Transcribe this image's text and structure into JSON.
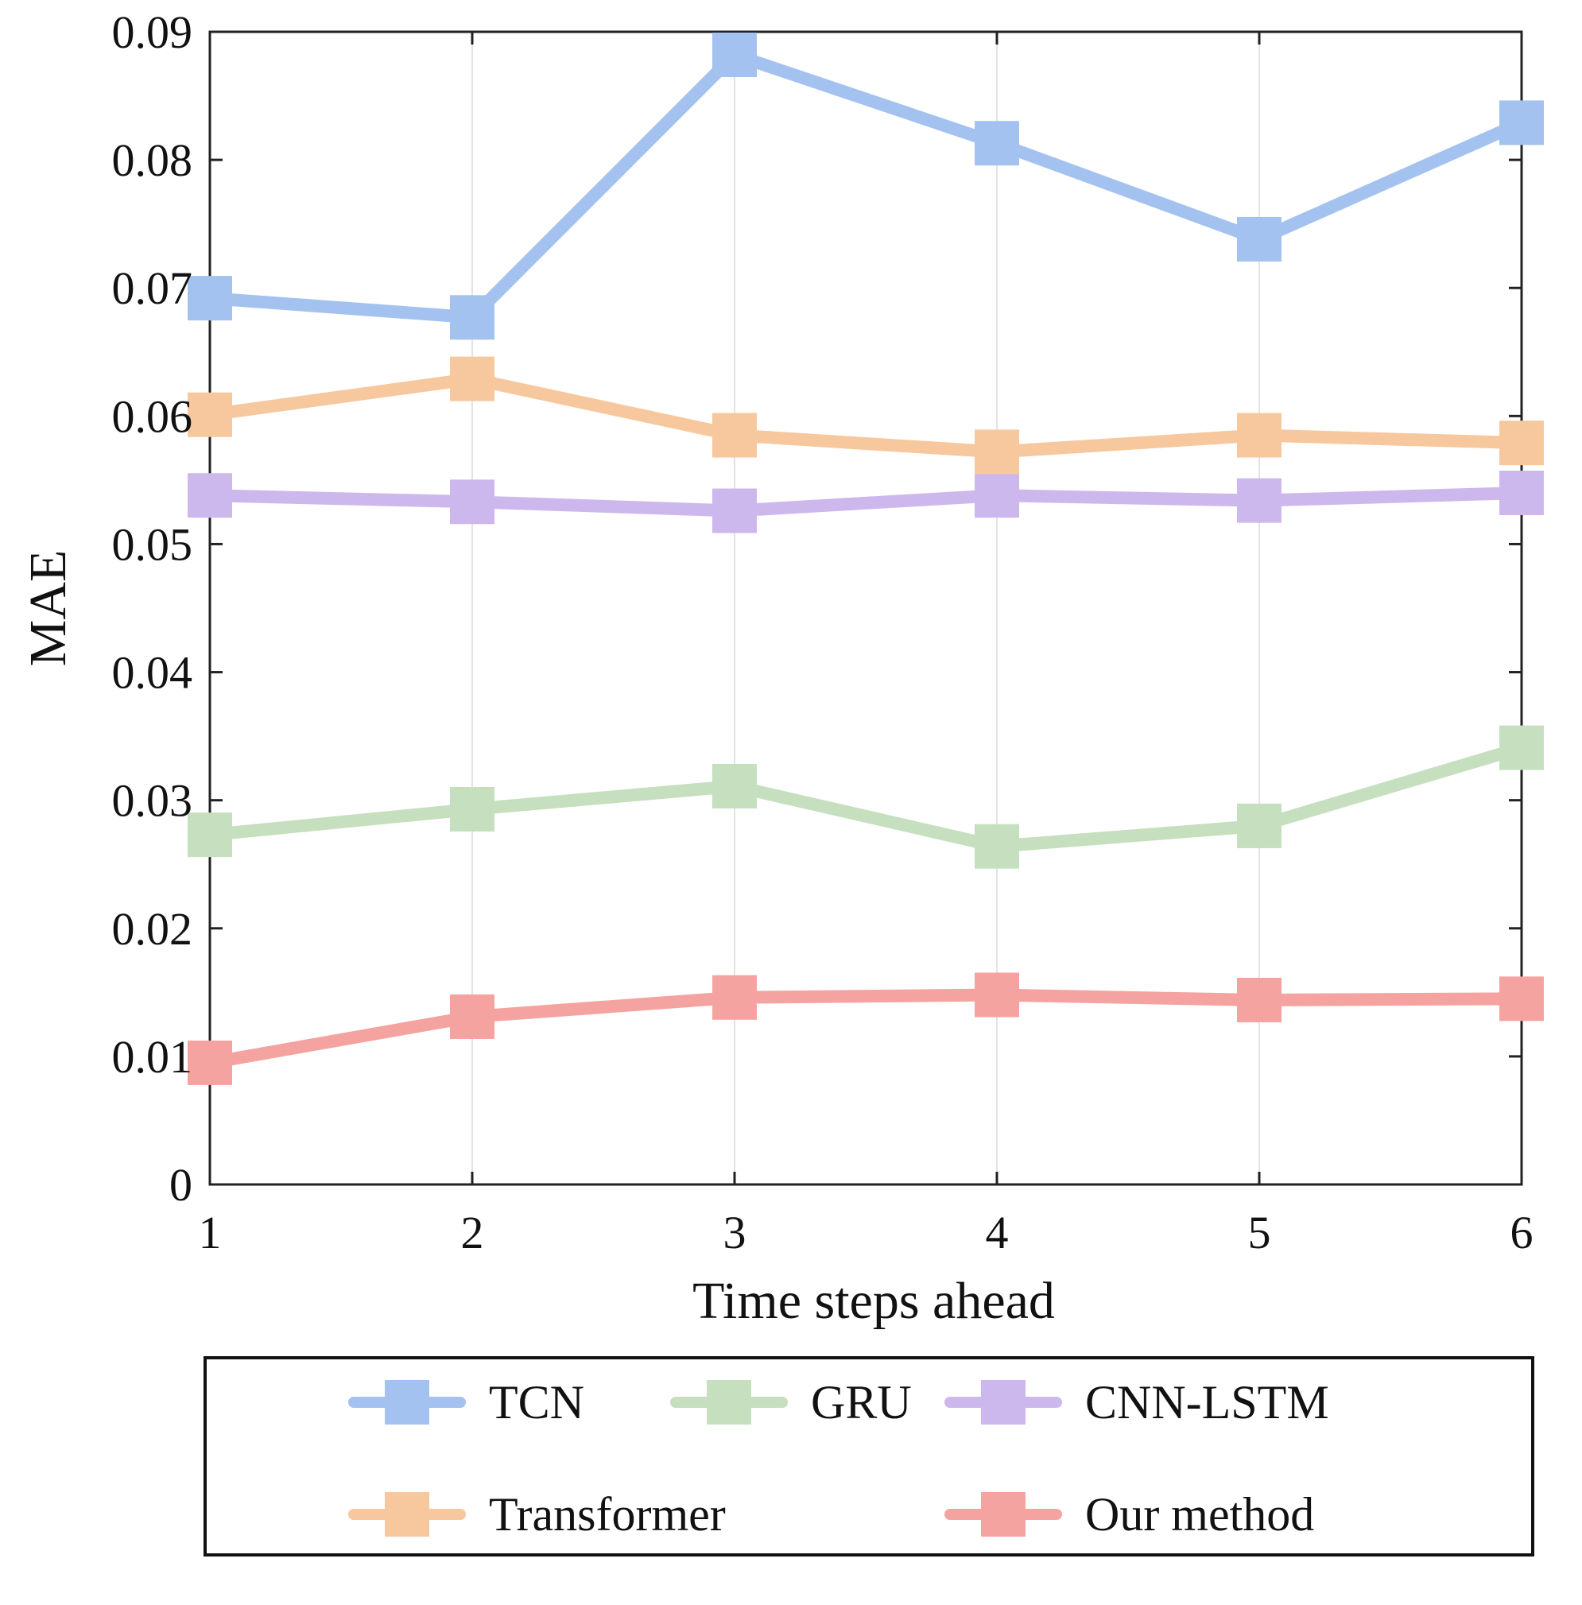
{
  "chart_data": {
    "type": "line",
    "xlabel": "Time steps ahead",
    "ylabel": "MAE",
    "x": [
      1,
      2,
      3,
      4,
      5,
      6
    ],
    "xlim": [
      1,
      6
    ],
    "ylim": [
      0,
      0.09
    ],
    "x_ticks": [
      "1",
      "2",
      "3",
      "4",
      "5",
      "6"
    ],
    "y_ticks": [
      "0",
      "0.01",
      "0.02",
      "0.03",
      "0.04",
      "0.05",
      "0.06",
      "0.07",
      "0.08",
      "0.09"
    ],
    "grid": "vertical",
    "legend_position": "bottom-outside",
    "series": [
      {
        "name": "TCN",
        "color": "#a4c2ef",
        "values": [
          0.0692,
          0.0677,
          0.0882,
          0.0813,
          0.0738,
          0.0829
        ]
      },
      {
        "name": "GRU",
        "color": "#c5dfbf",
        "values": [
          0.0273,
          0.0293,
          0.0311,
          0.0264,
          0.028,
          0.0341
        ]
      },
      {
        "name": "CNN-LSTM",
        "color": "#cdb8ee",
        "values": [
          0.0538,
          0.0533,
          0.0526,
          0.0538,
          0.0534,
          0.054
        ]
      },
      {
        "name": "Transformer",
        "color": "#f7c89e",
        "values": [
          0.0601,
          0.0629,
          0.0585,
          0.0572,
          0.0585,
          0.0579
        ]
      },
      {
        "name": "Our method",
        "color": "#f5a3a0",
        "values": [
          0.0095,
          0.0131,
          0.0146,
          0.0148,
          0.0144,
          0.0145
        ]
      }
    ]
  }
}
